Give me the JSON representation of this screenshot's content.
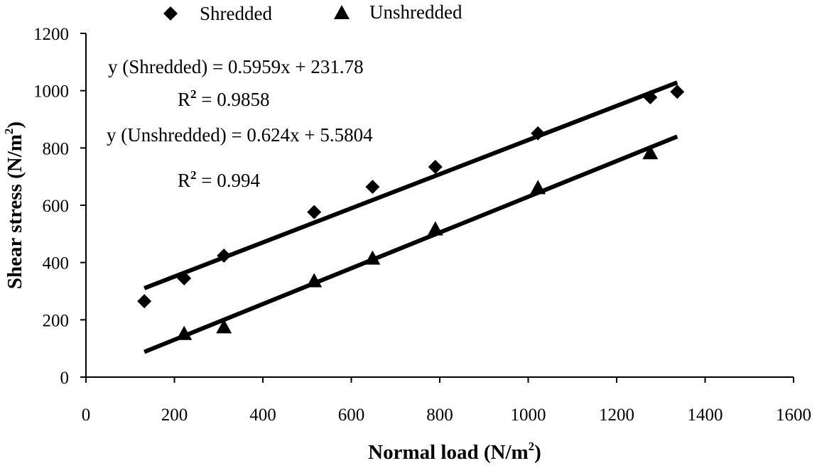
{
  "chart_data": {
    "type": "scatter",
    "xlabel": "Normal load (N/m",
    "xlabel_sup": "2",
    "xlabel_end": ")",
    "ylabel": "Shear stress (N/m",
    "ylabel_sup": "2",
    "ylabel_end": ")",
    "xlim": [
      0,
      1600
    ],
    "ylim": [
      0,
      1200
    ],
    "xticks": [
      0,
      200,
      400,
      600,
      800,
      1000,
      1200,
      1400,
      1600
    ],
    "yticks": [
      0,
      200,
      400,
      600,
      800,
      1000,
      1200
    ],
    "xtick_labels": [
      "0",
      "200",
      "400",
      "600",
      "800",
      "1000",
      "1200",
      "1400",
      "1600"
    ],
    "ytick_labels": [
      "0",
      "200",
      "400",
      "600",
      "800",
      "1000",
      "1200"
    ],
    "legend_position": "top-center",
    "series": [
      {
        "name": "Shredded",
        "marker": "diamond",
        "x": [
          132,
          222,
          312,
          516,
          648,
          790,
          1022,
          1276,
          1337
        ],
        "y": [
          265,
          345,
          424,
          576,
          664,
          734,
          851,
          977,
          996
        ],
        "trendline": {
          "slope": 0.5959,
          "intercept": 231.78,
          "x_range": [
            132,
            1337
          ]
        }
      },
      {
        "name": "Unshredded",
        "marker": "triangle",
        "x": [
          222,
          312,
          516,
          648,
          790,
          1022,
          1276
        ],
        "y": [
          152,
          175,
          336,
          415,
          517,
          661,
          783
        ],
        "trendline": {
          "slope": 0.624,
          "intercept": 5.5804,
          "x_range": [
            132,
            1337
          ]
        }
      }
    ],
    "annotations": {
      "eq_shredded": "y (Shredded) = 0.5959x + 231.78",
      "r2_shredded_prefix": "R",
      "r2_shredded_sup": "2",
      "r2_shredded_value": " = 0.9858",
      "eq_unshredded": "y (Unshredded) = 0.624x + 5.5804",
      "r2_unshredded_prefix": "R",
      "r2_unshredded_sup": "2",
      "r2_unshredded_value": " = 0.994"
    }
  }
}
